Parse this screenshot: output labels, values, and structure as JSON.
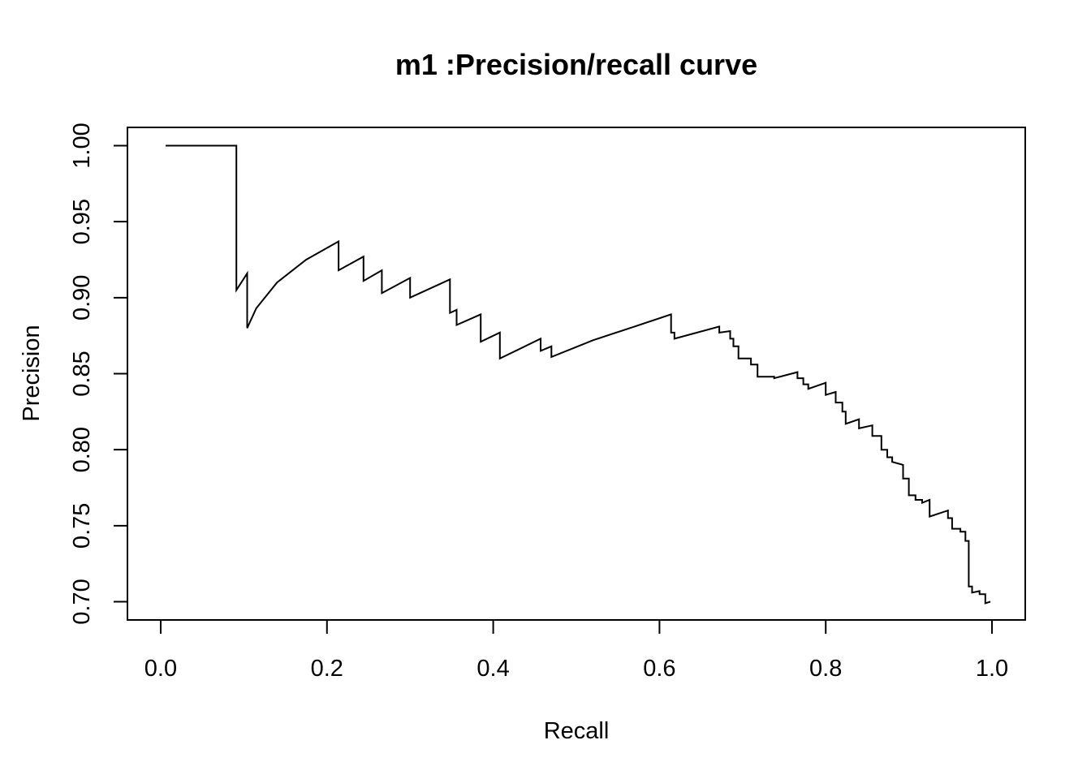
{
  "chart_data": {
    "type": "line",
    "title": "m1 :Precision/recall curve",
    "xlabel": "Recall",
    "ylabel": "Precision",
    "xlim": [
      -0.04,
      1.04
    ],
    "ylim": [
      0.688,
      1.012
    ],
    "x_ticks": [
      0.0,
      0.2,
      0.4,
      0.6,
      0.8,
      1.0
    ],
    "x_tick_labels": [
      "0.0",
      "0.2",
      "0.4",
      "0.6",
      "0.8",
      "1.0"
    ],
    "y_ticks": [
      0.7,
      0.75,
      0.8,
      0.85,
      0.9,
      0.95,
      1.0
    ],
    "y_tick_labels": [
      "0.70",
      "0.75",
      "0.80",
      "0.85",
      "0.90",
      "0.95",
      "1.00"
    ],
    "grid": false,
    "legend": "none",
    "series": [
      {
        "color": "#000000",
        "points": [
          [
            0.006,
            1.0
          ],
          [
            0.091,
            1.0
          ],
          [
            0.091,
            0.905
          ],
          [
            0.104,
            0.916
          ],
          [
            0.104,
            0.88
          ],
          [
            0.115,
            0.893
          ],
          [
            0.14,
            0.91
          ],
          [
            0.175,
            0.925
          ],
          [
            0.214,
            0.937
          ],
          [
            0.214,
            0.918
          ],
          [
            0.244,
            0.927
          ],
          [
            0.244,
            0.911
          ],
          [
            0.266,
            0.918
          ],
          [
            0.266,
            0.903
          ],
          [
            0.3,
            0.913
          ],
          [
            0.3,
            0.9
          ],
          [
            0.348,
            0.912
          ],
          [
            0.348,
            0.89
          ],
          [
            0.356,
            0.892
          ],
          [
            0.356,
            0.882
          ],
          [
            0.385,
            0.889
          ],
          [
            0.385,
            0.871
          ],
          [
            0.408,
            0.877
          ],
          [
            0.408,
            0.86
          ],
          [
            0.457,
            0.873
          ],
          [
            0.457,
            0.865
          ],
          [
            0.47,
            0.868
          ],
          [
            0.47,
            0.861
          ],
          [
            0.52,
            0.872
          ],
          [
            0.57,
            0.881
          ],
          [
            0.614,
            0.889
          ],
          [
            0.614,
            0.877
          ],
          [
            0.618,
            0.877
          ],
          [
            0.618,
            0.873
          ],
          [
            0.672,
            0.881
          ],
          [
            0.672,
            0.877
          ],
          [
            0.685,
            0.878
          ],
          [
            0.685,
            0.873
          ],
          [
            0.689,
            0.873
          ],
          [
            0.689,
            0.868
          ],
          [
            0.695,
            0.868
          ],
          [
            0.695,
            0.86
          ],
          [
            0.71,
            0.86
          ],
          [
            0.71,
            0.856
          ],
          [
            0.718,
            0.856
          ],
          [
            0.718,
            0.848
          ],
          [
            0.738,
            0.848
          ],
          [
            0.738,
            0.847
          ],
          [
            0.766,
            0.851
          ],
          [
            0.766,
            0.847
          ],
          [
            0.773,
            0.847
          ],
          [
            0.773,
            0.843
          ],
          [
            0.779,
            0.843
          ],
          [
            0.779,
            0.84
          ],
          [
            0.8,
            0.844
          ],
          [
            0.8,
            0.836
          ],
          [
            0.812,
            0.838
          ],
          [
            0.812,
            0.831
          ],
          [
            0.82,
            0.831
          ],
          [
            0.82,
            0.825
          ],
          [
            0.824,
            0.825
          ],
          [
            0.824,
            0.817
          ],
          [
            0.84,
            0.82
          ],
          [
            0.84,
            0.814
          ],
          [
            0.856,
            0.816
          ],
          [
            0.856,
            0.809
          ],
          [
            0.867,
            0.809
          ],
          [
            0.867,
            0.8
          ],
          [
            0.874,
            0.8
          ],
          [
            0.874,
            0.795
          ],
          [
            0.88,
            0.795
          ],
          [
            0.88,
            0.792
          ],
          [
            0.893,
            0.79
          ],
          [
            0.893,
            0.781
          ],
          [
            0.9,
            0.781
          ],
          [
            0.9,
            0.77
          ],
          [
            0.908,
            0.77
          ],
          [
            0.908,
            0.767
          ],
          [
            0.916,
            0.767
          ],
          [
            0.916,
            0.765
          ],
          [
            0.925,
            0.767
          ],
          [
            0.925,
            0.756
          ],
          [
            0.947,
            0.76
          ],
          [
            0.947,
            0.755
          ],
          [
            0.952,
            0.755
          ],
          [
            0.952,
            0.748
          ],
          [
            0.962,
            0.748
          ],
          [
            0.962,
            0.746
          ],
          [
            0.968,
            0.746
          ],
          [
            0.968,
            0.74
          ],
          [
            0.972,
            0.74
          ],
          [
            0.972,
            0.71
          ],
          [
            0.976,
            0.71
          ],
          [
            0.976,
            0.706
          ],
          [
            0.985,
            0.707
          ],
          [
            0.985,
            0.705
          ],
          [
            0.992,
            0.705
          ],
          [
            0.992,
            0.699
          ],
          [
            0.998,
            0.7
          ]
        ]
      }
    ]
  }
}
